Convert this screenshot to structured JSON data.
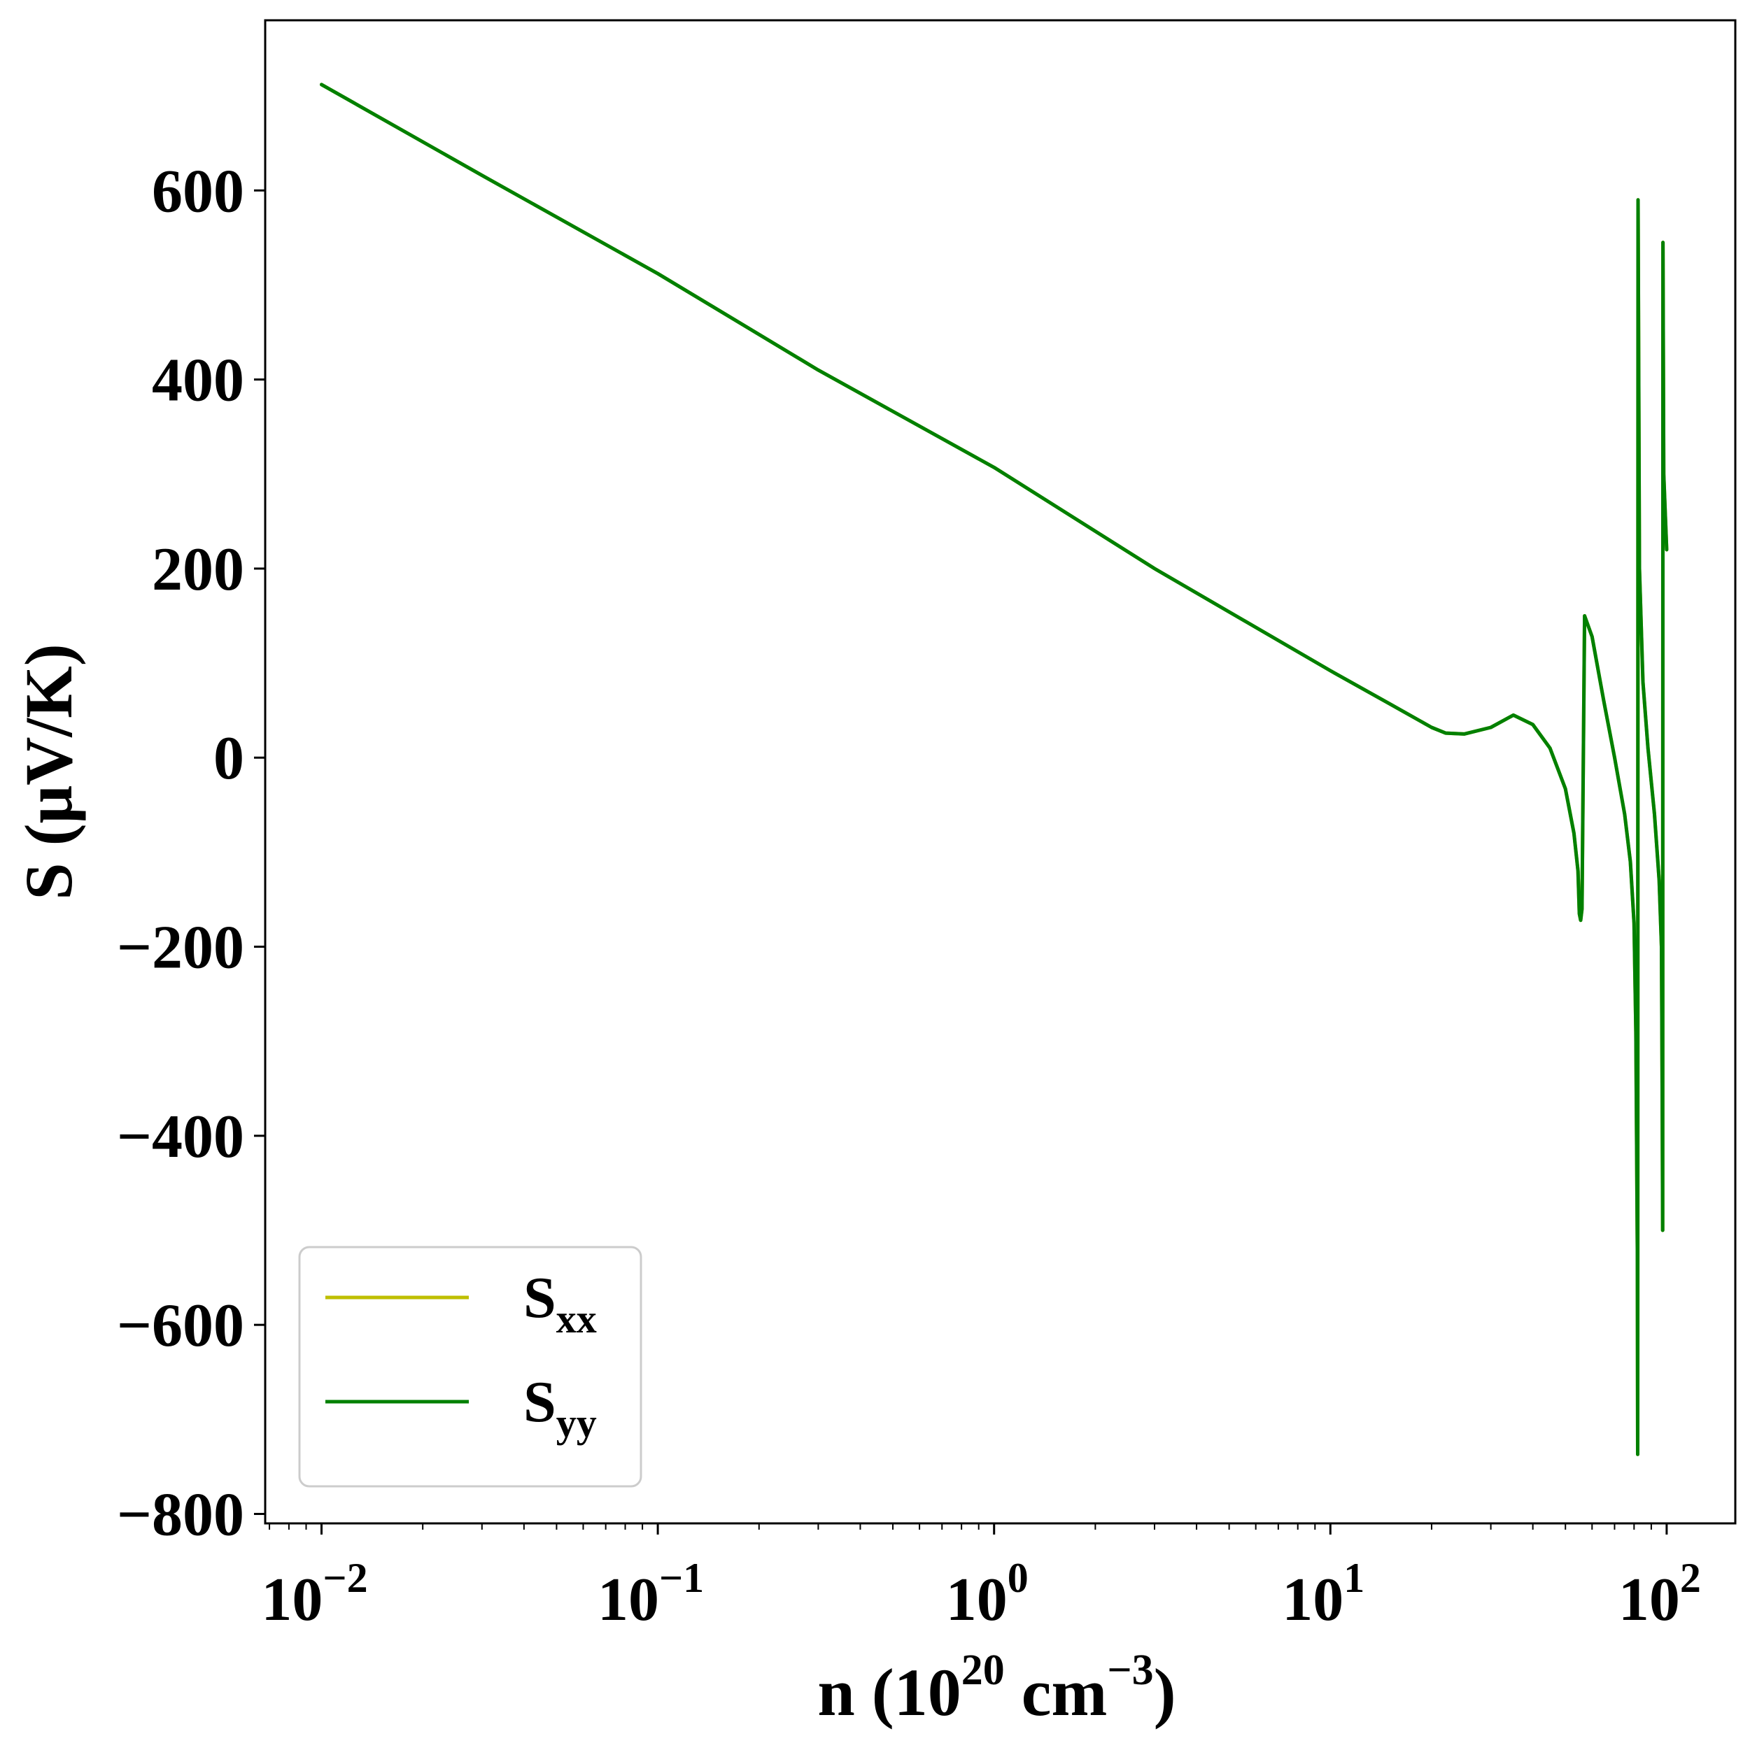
{
  "chart_data": {
    "type": "line",
    "title": "",
    "xlabel": {
      "base": "n (10",
      "sup1": "20",
      "mid": " cm",
      "sup2": "−3",
      "end": ")"
    },
    "ylabel": "S (μV/K)",
    "xscale": "log",
    "xlim": [
      0.0068,
      160
    ],
    "ylim": [
      -810,
      780
    ],
    "x_ticks": [
      {
        "value": 0.01,
        "base": "10",
        "exp": "−2"
      },
      {
        "value": 0.1,
        "base": "10",
        "exp": "−1"
      },
      {
        "value": 1,
        "base": "10",
        "exp": "0"
      },
      {
        "value": 10,
        "base": "10",
        "exp": "1"
      },
      {
        "value": 100,
        "base": "10",
        "exp": "2"
      }
    ],
    "y_ticks": [
      {
        "value": 600,
        "label": "600"
      },
      {
        "value": 400,
        "label": "400"
      },
      {
        "value": 200,
        "label": "200"
      },
      {
        "value": 0,
        "label": "0"
      },
      {
        "value": -200,
        "label": "−200"
      },
      {
        "value": -400,
        "label": "−400"
      },
      {
        "value": -600,
        "label": "−600"
      },
      {
        "value": -800,
        "label": "−800"
      }
    ],
    "grid": false,
    "legend_position": "lower-left",
    "series": [
      {
        "name": "S",
        "sub": "xx",
        "color": "#bfbf00",
        "x": [
          0.01,
          0.03,
          0.1,
          0.3,
          1,
          3,
          10,
          15,
          20,
          22,
          25,
          30,
          35,
          40,
          45,
          50,
          53,
          54.5,
          55,
          55.5,
          56,
          57,
          60,
          65,
          70,
          75,
          78,
          80,
          81,
          81.8,
          82,
          82.2,
          83,
          85,
          88,
          92,
          95,
          96.5,
          97,
          97.3,
          97.5,
          98,
          99,
          100
        ],
        "y": [
          712,
          616,
          512,
          410,
          307,
          200,
          92,
          57,
          32,
          26,
          25,
          32,
          45,
          35,
          10,
          -33,
          -80,
          -120,
          -165,
          -172,
          -160,
          150,
          128,
          60,
          0,
          -60,
          -110,
          -175,
          -290,
          -520,
          -737,
          590,
          200,
          80,
          10,
          -60,
          -130,
          -200,
          -350,
          -500,
          545,
          300,
          260,
          220
        ]
      },
      {
        "name": "S",
        "sub": "yy",
        "color": "#008000",
        "x": [
          0.01,
          0.03,
          0.1,
          0.3,
          1,
          3,
          10,
          15,
          20,
          22,
          25,
          30,
          35,
          40,
          45,
          50,
          53,
          54.5,
          55,
          55.5,
          56,
          57,
          60,
          65,
          70,
          75,
          78,
          80,
          81,
          81.8,
          82,
          82.2,
          83,
          85,
          88,
          92,
          95,
          96.5,
          97,
          97.3,
          97.5,
          98,
          99,
          100
        ],
        "y": [
          712,
          616,
          512,
          410,
          307,
          200,
          92,
          57,
          32,
          26,
          25,
          32,
          45,
          35,
          10,
          -33,
          -80,
          -120,
          -165,
          -172,
          -160,
          150,
          128,
          60,
          0,
          -60,
          -110,
          -175,
          -290,
          -520,
          -737,
          590,
          200,
          80,
          10,
          -60,
          -130,
          -200,
          -350,
          -500,
          545,
          300,
          260,
          220
        ]
      }
    ]
  }
}
